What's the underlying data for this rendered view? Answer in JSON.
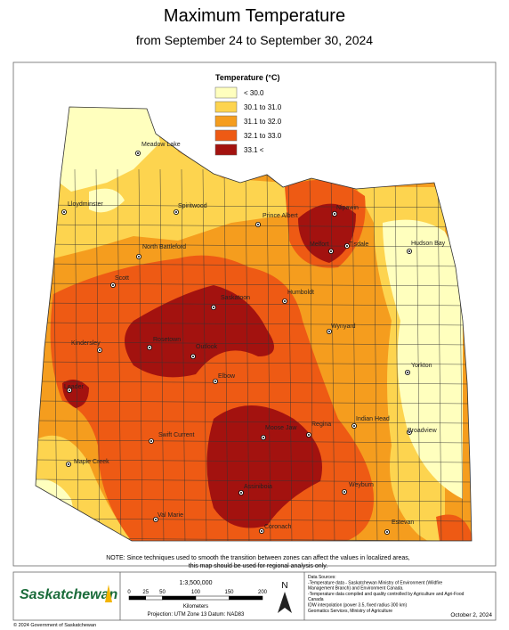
{
  "header": {
    "title": "Maximum Temperature",
    "subtitle": "from September 24  to September 30, 2024"
  },
  "legend": {
    "title": "Temperature (°C)",
    "items": [
      {
        "label": "< 30.0",
        "color": "#ffffbe"
      },
      {
        "label": "30.1 to 31.0",
        "color": "#fdd44f"
      },
      {
        "label": "31.1 to 32.0",
        "color": "#f59d1e"
      },
      {
        "label": "32.1 to 33.0",
        "color": "#ee5a14"
      },
      {
        "label": "33.1 <",
        "color": "#a3120f"
      }
    ]
  },
  "cities": [
    "Meadow Lake",
    "Lloydminster",
    "Spiritwood",
    "Prince Albert",
    "Nipawin",
    "North Battleford",
    "Melfort",
    "Tisdale",
    "Hudson Bay",
    "Scott",
    "Saskatoon",
    "Humboldt",
    "Kindersley",
    "Rosetown",
    "Outlook",
    "Wynyard",
    "Yorkton",
    "Leader",
    "Elbow",
    "Indian Head",
    "Swift Current",
    "Moose Jaw",
    "Regina",
    "Broadview",
    "Maple Creek",
    "Weyburn",
    "Assiniboia",
    "Val Marie",
    "Coronach",
    "Estevan"
  ],
  "note": [
    "NOTE: Since techniques used to smooth the transition between zones can affect the values in localized areas,",
    "this map should be used for regional analysis only."
  ],
  "footer": {
    "logo": "Saskatchewan",
    "scale": "1:3,500,000",
    "scale_ticks": [
      "0",
      "25",
      "50",
      "100",
      "150",
      "200"
    ],
    "scale_unit": "Kilometers",
    "projection": "Projection: UTM Zone 13   Datum: NAD83",
    "north": "N",
    "sources": [
      "Data Sources:",
      "-Temperature data - Saskatchewan Ministry of Environment (Wildfire",
      "  Management Branch) and Environment Canada.",
      "-Temperature data compiled and quality controlled by Agriculture and Agri-Food",
      "  Canada",
      "IDW interpolation (power 3.5, fixed radius 300 km)",
      "Geomatics Services, Ministry of Agriculture"
    ],
    "date": "October 2, 2024",
    "copyright": "© 2024 Government of Saskatchewan"
  }
}
